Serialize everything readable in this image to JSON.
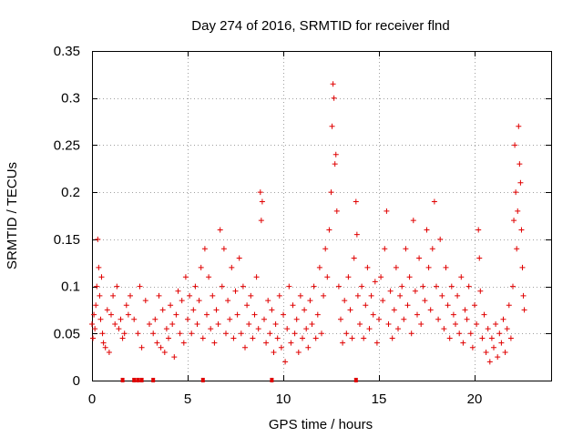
{
  "chart_data": {
    "type": "scatter",
    "title": "Day 274 of 2016, SRMTID for receiver flnd",
    "xlabel": "GPS time / hours",
    "ylabel": "SRMTID / TECUs",
    "xlim": [
      0,
      24
    ],
    "ylim": [
      0,
      0.35
    ],
    "xticks": [
      0,
      5,
      10,
      15,
      20
    ],
    "xtick_labels": [
      "0",
      "5",
      "10",
      "15",
      "20"
    ],
    "yticks": [
      0,
      0.05,
      0.1,
      0.15,
      0.2,
      0.25,
      0.3,
      0.35
    ],
    "ytick_labels": [
      "0",
      "0.05",
      "0.1",
      "0.15",
      "0.2",
      "0.25",
      "0.3",
      "0.35"
    ],
    "grid": true,
    "marker": "plus",
    "color": "#e00000",
    "series": [
      {
        "name": "SRMTID",
        "points": [
          [
            0.0,
            0.06
          ],
          [
            0.05,
            0.045
          ],
          [
            0.1,
            0.07
          ],
          [
            0.15,
            0.055
          ],
          [
            0.2,
            0.08
          ],
          [
            0.25,
            0.1
          ],
          [
            0.3,
            0.15
          ],
          [
            0.35,
            0.12
          ],
          [
            0.4,
            0.09
          ],
          [
            0.45,
            0.065
          ],
          [
            0.5,
            0.11
          ],
          [
            0.55,
            0.05
          ],
          [
            0.6,
            0.04
          ],
          [
            0.7,
            0.035
          ],
          [
            0.8,
            0.075
          ],
          [
            0.9,
            0.03
          ],
          [
            1.0,
            0.07
          ],
          [
            1.1,
            0.09
          ],
          [
            1.2,
            0.06
          ],
          [
            1.3,
            0.1
          ],
          [
            1.4,
            0.055
          ],
          [
            1.5,
            0.065
          ],
          [
            1.6,
            0.045
          ],
          [
            1.7,
            0.05
          ],
          [
            1.8,
            0.08
          ],
          [
            1.9,
            0.07
          ],
          [
            2.0,
            0.09
          ],
          [
            2.2,
            0.065
          ],
          [
            2.4,
            0.05
          ],
          [
            2.5,
            0.1
          ],
          [
            2.6,
            0.035
          ],
          [
            2.8,
            0.085
          ],
          [
            3.0,
            0.06
          ],
          [
            3.2,
            0.05
          ],
          [
            3.3,
            0.065
          ],
          [
            3.4,
            0.04
          ],
          [
            3.5,
            0.09
          ],
          [
            3.6,
            0.035
          ],
          [
            3.7,
            0.075
          ],
          [
            3.8,
            0.03
          ],
          [
            3.9,
            0.055
          ],
          [
            4.0,
            0.045
          ],
          [
            4.1,
            0.08
          ],
          [
            4.2,
            0.06
          ],
          [
            4.3,
            0.025
          ],
          [
            4.4,
            0.07
          ],
          [
            4.5,
            0.095
          ],
          [
            4.6,
            0.05
          ],
          [
            4.7,
            0.085
          ],
          [
            4.8,
            0.04
          ],
          [
            4.9,
            0.11
          ],
          [
            5.0,
            0.065
          ],
          [
            5.1,
            0.09
          ],
          [
            5.2,
            0.05
          ],
          [
            5.3,
            0.075
          ],
          [
            5.4,
            0.1
          ],
          [
            5.5,
            0.06
          ],
          [
            5.6,
            0.085
          ],
          [
            5.7,
            0.12
          ],
          [
            5.8,
            0.045
          ],
          [
            5.9,
            0.14
          ],
          [
            6.0,
            0.07
          ],
          [
            6.1,
            0.11
          ],
          [
            6.2,
            0.055
          ],
          [
            6.3,
            0.09
          ],
          [
            6.4,
            0.04
          ],
          [
            6.5,
            0.075
          ],
          [
            6.6,
            0.06
          ],
          [
            6.7,
            0.16
          ],
          [
            6.8,
            0.1
          ],
          [
            6.9,
            0.14
          ],
          [
            7.0,
            0.05
          ],
          [
            7.1,
            0.085
          ],
          [
            7.2,
            0.065
          ],
          [
            7.3,
            0.12
          ],
          [
            7.4,
            0.045
          ],
          [
            7.5,
            0.095
          ],
          [
            7.6,
            0.07
          ],
          [
            7.7,
            0.13
          ],
          [
            7.8,
            0.05
          ],
          [
            7.9,
            0.1
          ],
          [
            8.0,
            0.035
          ],
          [
            8.1,
            0.08
          ],
          [
            8.2,
            0.06
          ],
          [
            8.3,
            0.09
          ],
          [
            8.4,
            0.045
          ],
          [
            8.5,
            0.07
          ],
          [
            8.6,
            0.11
          ],
          [
            8.7,
            0.055
          ],
          [
            8.8,
            0.2
          ],
          [
            8.85,
            0.17
          ],
          [
            8.9,
            0.19
          ],
          [
            9.0,
            0.065
          ],
          [
            9.1,
            0.04
          ],
          [
            9.2,
            0.085
          ],
          [
            9.3,
            0.05
          ],
          [
            9.4,
            0.075
          ],
          [
            9.5,
            0.03
          ],
          [
            9.6,
            0.06
          ],
          [
            9.7,
            0.045
          ],
          [
            9.8,
            0.09
          ],
          [
            9.9,
            0.035
          ],
          [
            10.0,
            0.07
          ],
          [
            10.1,
            0.02
          ],
          [
            10.2,
            0.055
          ],
          [
            10.3,
            0.1
          ],
          [
            10.4,
            0.04
          ],
          [
            10.5,
            0.08
          ],
          [
            10.6,
            0.05
          ],
          [
            10.7,
            0.065
          ],
          [
            10.8,
            0.03
          ],
          [
            10.9,
            0.09
          ],
          [
            11.0,
            0.045
          ],
          [
            11.1,
            0.075
          ],
          [
            11.2,
            0.055
          ],
          [
            11.3,
            0.035
          ],
          [
            11.4,
            0.085
          ],
          [
            11.5,
            0.06
          ],
          [
            11.6,
            0.1
          ],
          [
            11.7,
            0.045
          ],
          [
            11.8,
            0.07
          ],
          [
            11.9,
            0.12
          ],
          [
            12.0,
            0.05
          ],
          [
            12.1,
            0.09
          ],
          [
            12.2,
            0.14
          ],
          [
            12.3,
            0.11
          ],
          [
            12.4,
            0.16
          ],
          [
            12.5,
            0.2
          ],
          [
            12.55,
            0.27
          ],
          [
            12.6,
            0.315
          ],
          [
            12.65,
            0.3
          ],
          [
            12.7,
            0.23
          ],
          [
            12.75,
            0.24
          ],
          [
            12.8,
            0.18
          ],
          [
            12.9,
            0.1
          ],
          [
            13.0,
            0.065
          ],
          [
            13.1,
            0.04
          ],
          [
            13.2,
            0.085
          ],
          [
            13.3,
            0.05
          ],
          [
            13.4,
            0.11
          ],
          [
            13.5,
            0.075
          ],
          [
            13.6,
            0.045
          ],
          [
            13.7,
            0.13
          ],
          [
            13.8,
            0.19
          ],
          [
            13.85,
            0.155
          ],
          [
            13.9,
            0.09
          ],
          [
            14.0,
            0.06
          ],
          [
            14.1,
            0.1
          ],
          [
            14.2,
            0.045
          ],
          [
            14.3,
            0.08
          ],
          [
            14.4,
            0.12
          ],
          [
            14.5,
            0.055
          ],
          [
            14.6,
            0.09
          ],
          [
            14.7,
            0.07
          ],
          [
            14.8,
            0.105
          ],
          [
            14.9,
            0.04
          ],
          [
            15.0,
            0.065
          ],
          [
            15.1,
            0.11
          ],
          [
            15.2,
            0.085
          ],
          [
            15.3,
            0.14
          ],
          [
            15.4,
            0.18
          ],
          [
            15.5,
            0.06
          ],
          [
            15.6,
            0.095
          ],
          [
            15.7,
            0.045
          ],
          [
            15.8,
            0.075
          ],
          [
            15.9,
            0.12
          ],
          [
            16.0,
            0.055
          ],
          [
            16.1,
            0.09
          ],
          [
            16.2,
            0.1
          ],
          [
            16.3,
            0.065
          ],
          [
            16.4,
            0.14
          ],
          [
            16.5,
            0.08
          ],
          [
            16.6,
            0.11
          ],
          [
            16.7,
            0.05
          ],
          [
            16.8,
            0.17
          ],
          [
            16.9,
            0.095
          ],
          [
            17.0,
            0.07
          ],
          [
            17.1,
            0.13
          ],
          [
            17.2,
            0.06
          ],
          [
            17.3,
            0.1
          ],
          [
            17.4,
            0.085
          ],
          [
            17.5,
            0.16
          ],
          [
            17.6,
            0.12
          ],
          [
            17.7,
            0.075
          ],
          [
            17.8,
            0.14
          ],
          [
            17.9,
            0.19
          ],
          [
            18.0,
            0.1
          ],
          [
            18.1,
            0.065
          ],
          [
            18.2,
            0.15
          ],
          [
            18.3,
            0.09
          ],
          [
            18.4,
            0.055
          ],
          [
            18.5,
            0.12
          ],
          [
            18.6,
            0.08
          ],
          [
            18.7,
            0.045
          ],
          [
            18.8,
            0.1
          ],
          [
            18.9,
            0.07
          ],
          [
            19.0,
            0.06
          ],
          [
            19.1,
            0.09
          ],
          [
            19.2,
            0.05
          ],
          [
            19.3,
            0.11
          ],
          [
            19.4,
            0.04
          ],
          [
            19.5,
            0.075
          ],
          [
            19.6,
            0.065
          ],
          [
            19.7,
            0.1
          ],
          [
            19.8,
            0.05
          ],
          [
            19.9,
            0.035
          ],
          [
            20.0,
            0.08
          ],
          [
            20.1,
            0.06
          ],
          [
            20.2,
            0.16
          ],
          [
            20.25,
            0.13
          ],
          [
            20.3,
            0.095
          ],
          [
            20.4,
            0.045
          ],
          [
            20.5,
            0.07
          ],
          [
            20.6,
            0.03
          ],
          [
            20.7,
            0.055
          ],
          [
            20.8,
            0.02
          ],
          [
            20.9,
            0.045
          ],
          [
            21.0,
            0.035
          ],
          [
            21.1,
            0.06
          ],
          [
            21.2,
            0.025
          ],
          [
            21.3,
            0.05
          ],
          [
            21.4,
            0.04
          ],
          [
            21.5,
            0.065
          ],
          [
            21.6,
            0.03
          ],
          [
            21.7,
            0.055
          ],
          [
            21.8,
            0.08
          ],
          [
            21.9,
            0.045
          ],
          [
            22.0,
            0.1
          ],
          [
            22.05,
            0.17
          ],
          [
            22.1,
            0.25
          ],
          [
            22.15,
            0.2
          ],
          [
            22.2,
            0.14
          ],
          [
            22.25,
            0.18
          ],
          [
            22.3,
            0.27
          ],
          [
            22.35,
            0.23
          ],
          [
            22.4,
            0.21
          ],
          [
            22.45,
            0.16
          ],
          [
            22.5,
            0.12
          ],
          [
            22.55,
            0.09
          ],
          [
            22.6,
            0.075
          ]
        ]
      }
    ],
    "baseline_marks_x": [
      1.6,
      2.2,
      2.4,
      2.6,
      3.2,
      5.8,
      9.4,
      13.8
    ]
  }
}
